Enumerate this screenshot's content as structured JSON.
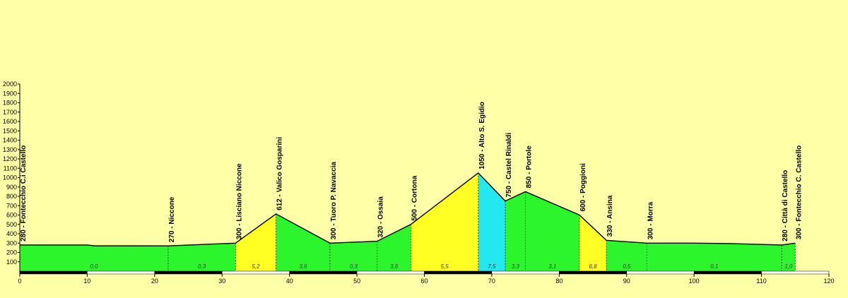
{
  "chart_data": {
    "type": "area",
    "title": "",
    "xlabel": "",
    "ylabel": "",
    "xlim": [
      0,
      120
    ],
    "ylim": [
      0,
      2000
    ],
    "x_ticks": [
      "0",
      "10",
      "20",
      "30",
      "40",
      "50",
      "60",
      "70",
      "80",
      "90",
      "100",
      "110",
      "120"
    ],
    "y_ticks": [
      "100",
      "200",
      "300",
      "400",
      "500",
      "600",
      "700",
      "800",
      "900",
      "1000",
      "1100",
      "1200",
      "1300",
      "1400",
      "1500",
      "1600",
      "1700",
      "1800",
      "1900",
      "2000"
    ],
    "grid": false,
    "profile": [
      {
        "x": 0,
        "y": 280
      },
      {
        "x": 10,
        "y": 280
      },
      {
        "x": 11,
        "y": 272
      },
      {
        "x": 22,
        "y": 270
      },
      {
        "x": 28,
        "y": 288
      },
      {
        "x": 32,
        "y": 300
      },
      {
        "x": 38,
        "y": 612
      },
      {
        "x": 46,
        "y": 300
      },
      {
        "x": 53,
        "y": 320
      },
      {
        "x": 58,
        "y": 500
      },
      {
        "x": 68,
        "y": 1050
      },
      {
        "x": 72,
        "y": 750
      },
      {
        "x": 75,
        "y": 850
      },
      {
        "x": 83,
        "y": 600
      },
      {
        "x": 87,
        "y": 330
      },
      {
        "x": 93,
        "y": 300
      },
      {
        "x": 100,
        "y": 300
      },
      {
        "x": 105,
        "y": 296
      },
      {
        "x": 113,
        "y": 280
      },
      {
        "x": 115,
        "y": 300
      }
    ],
    "waypoints": [
      {
        "x": 0,
        "alt": 280,
        "label": "280 - Fontecchio C.i Castello"
      },
      {
        "x": 22,
        "alt": 270,
        "label": "270 - Niccone"
      },
      {
        "x": 32,
        "alt": 300,
        "label": "300 - Lisciano Niccone"
      },
      {
        "x": 38,
        "alt": 612,
        "label": "612 - Valico Gosparini"
      },
      {
        "x": 46,
        "alt": 300,
        "label": "300 - Tuoro P. Navaccia"
      },
      {
        "x": 53,
        "alt": 320,
        "label": "320 - Ossaia"
      },
      {
        "x": 58,
        "alt": 500,
        "label": "500 - Cortona"
      },
      {
        "x": 68,
        "alt": 1050,
        "label": "1050 - Alto S. Egidio"
      },
      {
        "x": 72,
        "alt": 750,
        "label": "750 - Castel Rinaldi"
      },
      {
        "x": 75,
        "alt": 850,
        "label": "850 - Portole"
      },
      {
        "x": 83,
        "alt": 600,
        "label": "600 - Poggioni"
      },
      {
        "x": 87,
        "alt": 330,
        "label": "330 - Ansina"
      },
      {
        "x": 93,
        "alt": 300,
        "label": "300 - Morra"
      },
      {
        "x": 113,
        "alt": 280,
        "label": "280 - Città di Castello"
      },
      {
        "x": 115,
        "alt": 300,
        "label": "300 - Fontecchio C. Castello"
      }
    ],
    "segments": [
      {
        "x0": 0,
        "x1": 22,
        "gradient": "0,0",
        "color": "#2cf52c"
      },
      {
        "x0": 22,
        "x1": 32,
        "gradient": "0,3",
        "color": "#2cf52c"
      },
      {
        "x0": 32,
        "x1": 38,
        "gradient": "5,2",
        "color": "#ffff24"
      },
      {
        "x0": 38,
        "x1": 46,
        "gradient": "3,9",
        "color": "#2cf52c"
      },
      {
        "x0": 46,
        "x1": 53,
        "gradient": "0,3",
        "color": "#2cf52c"
      },
      {
        "x0": 53,
        "x1": 58,
        "gradient": "3,6",
        "color": "#2cf52c"
      },
      {
        "x0": 58,
        "x1": 68,
        "gradient": "5,5",
        "color": "#ffff24"
      },
      {
        "x0": 68,
        "x1": 72,
        "gradient": "7,5",
        "color": "#24e8f0"
      },
      {
        "x0": 72,
        "x1": 75,
        "gradient": "3,3",
        "color": "#2cf52c"
      },
      {
        "x0": 75,
        "x1": 83,
        "gradient": "3,1",
        "color": "#2cf52c"
      },
      {
        "x0": 83,
        "x1": 87,
        "gradient": "6,8",
        "color": "#ffff24"
      },
      {
        "x0": 87,
        "x1": 93,
        "gradient": "0,5",
        "color": "#2cf52c"
      },
      {
        "x0": 93,
        "x1": 113,
        "gradient": "0,1",
        "color": "#2cf52c"
      },
      {
        "x0": 113,
        "x1": 115,
        "gradient": "1,0",
        "color": "#2cf52c"
      }
    ],
    "colors": {
      "background": "#ffffa8",
      "easy": "#2cf52c",
      "medium": "#ffff24",
      "hard": "#24e8f0",
      "outline": "#000000"
    }
  }
}
